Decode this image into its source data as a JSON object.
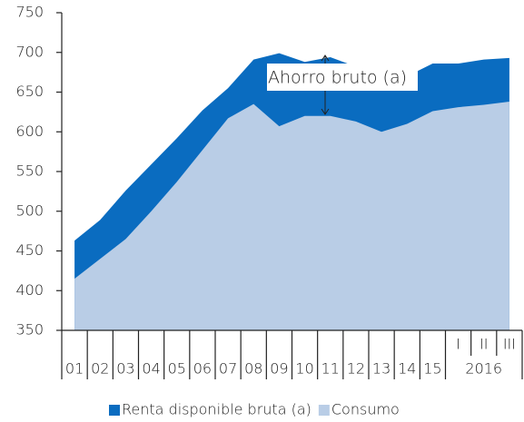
{
  "chart_data": {
    "type": "area",
    "categories": [
      "01",
      "02",
      "03",
      "04",
      "05",
      "06",
      "07",
      "08",
      "09",
      "10",
      "11",
      "12",
      "13",
      "14",
      "15",
      "I",
      "II",
      "III"
    ],
    "category_groups": [
      {
        "label": "2016",
        "categories": [
          "I",
          "II",
          "III"
        ]
      }
    ],
    "series": [
      {
        "name": "Renta disponible bruta (a)",
        "color": "#0a6cc0",
        "values": [
          463,
          489,
          526,
          559,
          592,
          627,
          655,
          691,
          699,
          688,
          694,
          682,
          672,
          670,
          686,
          686,
          691,
          693
        ]
      },
      {
        "name": "Consumo",
        "color": "#b9cde6",
        "values": [
          415,
          440,
          465,
          500,
          537,
          577,
          617,
          635,
          607,
          620,
          620,
          613,
          600,
          610,
          626,
          631,
          634,
          638
        ]
      }
    ],
    "ylim": [
      350,
      750
    ],
    "yticks": [
      350,
      400,
      450,
      500,
      550,
      600,
      650,
      700,
      750
    ],
    "annotations": [
      "Ahorro bruto (a)"
    ],
    "legend": "bottom"
  }
}
